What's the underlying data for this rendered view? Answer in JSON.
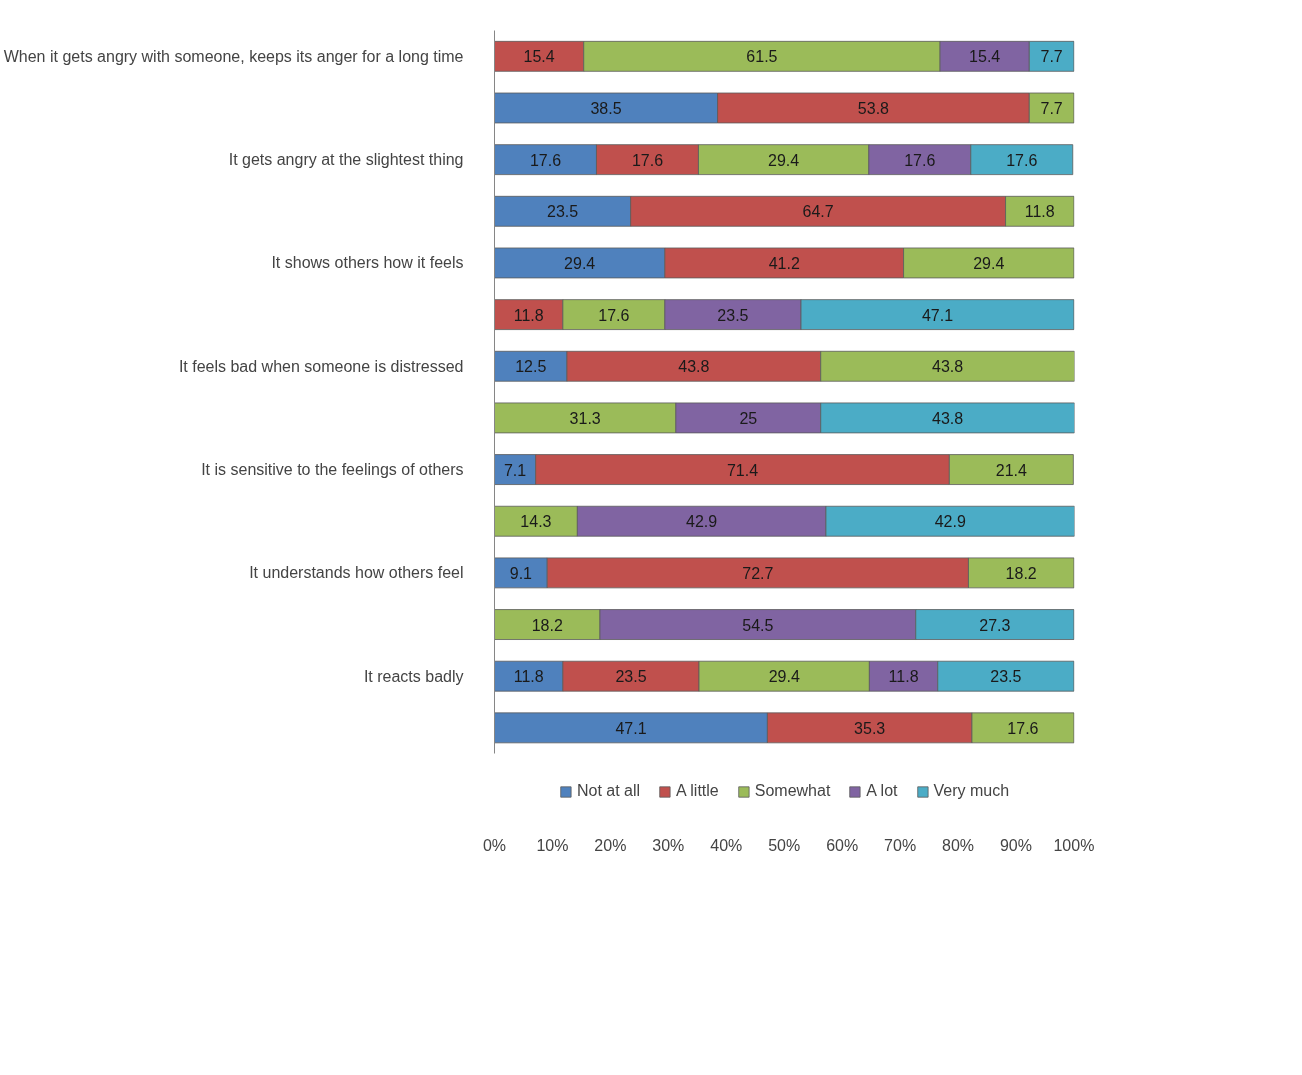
{
  "chart_data": {
    "type": "bar",
    "orientation": "horizontal",
    "stacked": true,
    "data_labels": true,
    "grid": false,
    "legend": "bottom",
    "categories": [
      "When it gets angry with someone, keeps its anger for a long time",
      null,
      "It gets angry at the slightest thing",
      null,
      "It shows others how it feels",
      null,
      "It feels bad when someone is distressed",
      null,
      "It is sensitive to the feelings of others",
      null,
      "It understands how others feel",
      null,
      "It reacts badly",
      null
    ],
    "series": [
      {
        "name": "Not at all",
        "color": "#4f81bd",
        "values": [
          null,
          38.5,
          17.6,
          23.5,
          29.4,
          null,
          12.5,
          null,
          7.1,
          null,
          9.1,
          null,
          11.8,
          47.1
        ]
      },
      {
        "name": "A little",
        "color": "#c0504d",
        "values": [
          15.4,
          53.8,
          17.6,
          64.7,
          41.2,
          11.8,
          43.8,
          null,
          71.4,
          null,
          72.7,
          null,
          23.5,
          35.3
        ]
      },
      {
        "name": "Somewhat",
        "color": "#9bbb59",
        "values": [
          61.5,
          7.7,
          29.4,
          11.8,
          29.4,
          17.6,
          43.8,
          31.3,
          21.4,
          14.3,
          18.2,
          18.2,
          29.4,
          17.6
        ]
      },
      {
        "name": "A lot",
        "color": "#8064a2",
        "values": [
          15.4,
          null,
          17.6,
          null,
          null,
          23.5,
          null,
          25,
          null,
          42.9,
          null,
          54.5,
          11.8,
          null
        ]
      },
      {
        "name": "Very much",
        "color": "#4bacc6",
        "values": [
          7.7,
          null,
          17.6,
          null,
          null,
          47.1,
          null,
          43.8,
          null,
          42.9,
          null,
          27.3,
          23.5,
          null
        ]
      }
    ],
    "xlim": [
      0,
      100.1
    ],
    "xticks": [
      {
        "value": 0,
        "label": "0%"
      },
      {
        "value": 10,
        "label": "10%"
      },
      {
        "value": 20,
        "label": "20%"
      },
      {
        "value": 30,
        "label": "30%"
      },
      {
        "value": 40,
        "label": "40%"
      },
      {
        "value": 50,
        "label": "50%"
      },
      {
        "value": 60,
        "label": "60%"
      },
      {
        "value": 70,
        "label": "70%"
      },
      {
        "value": 80,
        "label": "80%"
      },
      {
        "value": 90,
        "label": "90%"
      },
      {
        "value": 100,
        "label": "100%"
      }
    ]
  }
}
